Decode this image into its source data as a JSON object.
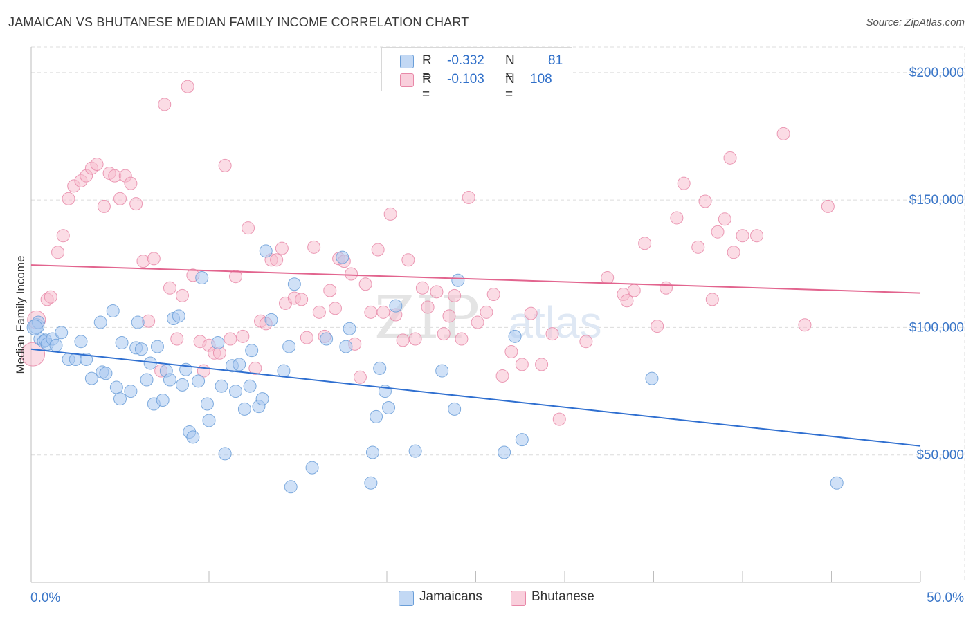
{
  "title": "JAMAICAN VS BHUTANESE MEDIAN FAMILY INCOME CORRELATION CHART",
  "source": "Source: ZipAtlas.com",
  "watermark": {
    "zip": "ZIP",
    "atlas": "atlas"
  },
  "stats": [
    {
      "r_label": "R =",
      "r_value": "-0.332",
      "n_label": "N =",
      "n_value": "81"
    },
    {
      "r_label": "R =",
      "r_value": "-0.103",
      "n_label": "N =",
      "n_value": "108"
    }
  ],
  "legend": {
    "jamaicans": "Jamaicans",
    "bhutanese": "Bhutanese"
  },
  "colors": {
    "jamaicans_fill": "#aac8f0",
    "jamaicans_stroke": "#6a9ed8",
    "jamaicans_line": "#2f6fd0",
    "bhutanese_fill": "#f7bfd0",
    "bhutanese_stroke": "#e888a8",
    "bhutanese_line": "#e2648e",
    "axis_text": "#3a76c8",
    "grid": "#dcdcdc"
  },
  "chart_data": {
    "type": "scatter",
    "title": "JAMAICAN VS BHUTANESE MEDIAN FAMILY INCOME CORRELATION CHART",
    "xlabel": "",
    "ylabel": "Median Family Income",
    "xlim": [
      0,
      50
    ],
    "ylim": [
      0,
      210000
    ],
    "x_tick_labels": [
      "0.0%",
      "50.0%"
    ],
    "y_ticks": [
      50000,
      100000,
      150000,
      200000
    ],
    "y_tick_labels": [
      "$50,000",
      "$100,000",
      "$150,000",
      "$200,000"
    ],
    "grid": true,
    "legend_position": "bottom-center",
    "series": [
      {
        "name": "Jamaicans",
        "r": -0.332,
        "n": 81,
        "trend": {
          "x": [
            0,
            50
          ],
          "y": [
            91500,
            53500
          ]
        },
        "points": [
          [
            0.3,
            100500
          ],
          [
            0.4,
            102000
          ],
          [
            0.5,
            95500
          ],
          [
            0.7,
            94500
          ],
          [
            0.8,
            95000
          ],
          [
            0.9,
            93500
          ],
          [
            1.2,
            95500
          ],
          [
            1.4,
            93000
          ],
          [
            1.7,
            98000
          ],
          [
            2.1,
            87500
          ],
          [
            2.5,
            87500
          ],
          [
            2.8,
            94500
          ],
          [
            3.1,
            87500
          ],
          [
            3.4,
            80000
          ],
          [
            3.9,
            102000
          ],
          [
            4.0,
            82500
          ],
          [
            4.2,
            82000
          ],
          [
            4.6,
            106500
          ],
          [
            4.8,
            76500
          ],
          [
            5.0,
            72000
          ],
          [
            5.1,
            94000
          ],
          [
            5.6,
            75000
          ],
          [
            5.9,
            92000
          ],
          [
            6.2,
            91500
          ],
          [
            6.0,
            102000
          ],
          [
            6.5,
            79500
          ],
          [
            6.7,
            86000
          ],
          [
            6.9,
            70000
          ],
          [
            7.1,
            92500
          ],
          [
            7.4,
            71500
          ],
          [
            7.6,
            83000
          ],
          [
            7.8,
            79500
          ],
          [
            8.0,
            103500
          ],
          [
            8.3,
            104500
          ],
          [
            8.5,
            77500
          ],
          [
            8.7,
            83500
          ],
          [
            8.9,
            59000
          ],
          [
            9.1,
            57000
          ],
          [
            9.4,
            79000
          ],
          [
            9.6,
            119500
          ],
          [
            9.9,
            70000
          ],
          [
            10.0,
            63500
          ],
          [
            10.5,
            94000
          ],
          [
            10.7,
            77000
          ],
          [
            10.9,
            50500
          ],
          [
            11.3,
            85000
          ],
          [
            11.5,
            75000
          ],
          [
            11.7,
            85500
          ],
          [
            12.0,
            68000
          ],
          [
            12.3,
            77000
          ],
          [
            12.4,
            91000
          ],
          [
            12.8,
            69000
          ],
          [
            13.0,
            72000
          ],
          [
            13.2,
            130000
          ],
          [
            13.5,
            103000
          ],
          [
            14.2,
            83000
          ],
          [
            14.5,
            92500
          ],
          [
            14.6,
            37500
          ],
          [
            14.8,
            117000
          ],
          [
            15.8,
            45000
          ],
          [
            16.6,
            95500
          ],
          [
            17.5,
            127500
          ],
          [
            17.7,
            92500
          ],
          [
            17.9,
            99500
          ],
          [
            19.1,
            39000
          ],
          [
            19.2,
            51000
          ],
          [
            19.4,
            65000
          ],
          [
            19.6,
            84000
          ],
          [
            19.9,
            75000
          ],
          [
            20.1,
            68500
          ],
          [
            20.5,
            108500
          ],
          [
            21.6,
            51500
          ],
          [
            23.1,
            83000
          ],
          [
            23.8,
            68000
          ],
          [
            24.0,
            118500
          ],
          [
            26.6,
            51000
          ],
          [
            27.2,
            96500
          ],
          [
            27.6,
            56000
          ],
          [
            34.9,
            80000
          ],
          [
            45.3,
            39000
          ],
          [
            0.2,
            100000
          ]
        ]
      },
      {
        "name": "Bhutanese",
        "r": -0.103,
        "n": 108,
        "trend": {
          "x": [
            0,
            50
          ],
          "y": [
            124500,
            113500
          ]
        },
        "points": [
          [
            0.1,
            89500
          ],
          [
            0.3,
            103000
          ],
          [
            0.9,
            111000
          ],
          [
            1.1,
            112000
          ],
          [
            1.5,
            129500
          ],
          [
            1.8,
            136000
          ],
          [
            2.1,
            150500
          ],
          [
            2.4,
            155500
          ],
          [
            2.8,
            157500
          ],
          [
            3.1,
            159500
          ],
          [
            3.4,
            162500
          ],
          [
            3.7,
            164000
          ],
          [
            4.1,
            147500
          ],
          [
            4.4,
            160500
          ],
          [
            4.7,
            159500
          ],
          [
            5.0,
            150500
          ],
          [
            5.3,
            159500
          ],
          [
            5.6,
            156500
          ],
          [
            5.9,
            148500
          ],
          [
            6.3,
            126000
          ],
          [
            6.6,
            102500
          ],
          [
            6.9,
            127000
          ],
          [
            7.3,
            83000
          ],
          [
            7.5,
            187500
          ],
          [
            7.8,
            115500
          ],
          [
            8.2,
            95500
          ],
          [
            8.5,
            112500
          ],
          [
            8.8,
            194500
          ],
          [
            9.1,
            120500
          ],
          [
            9.5,
            94500
          ],
          [
            9.7,
            83000
          ],
          [
            10.0,
            93000
          ],
          [
            10.3,
            90000
          ],
          [
            10.6,
            90000
          ],
          [
            10.9,
            163500
          ],
          [
            11.2,
            95500
          ],
          [
            11.5,
            120000
          ],
          [
            11.9,
            96500
          ],
          [
            12.2,
            139000
          ],
          [
            12.6,
            84000
          ],
          [
            12.9,
            102500
          ],
          [
            13.2,
            101500
          ],
          [
            13.5,
            126500
          ],
          [
            13.8,
            126500
          ],
          [
            14.1,
            131000
          ],
          [
            14.3,
            109500
          ],
          [
            14.8,
            111500
          ],
          [
            15.2,
            111000
          ],
          [
            15.5,
            96000
          ],
          [
            15.9,
            131500
          ],
          [
            16.2,
            106000
          ],
          [
            16.5,
            96500
          ],
          [
            16.8,
            114500
          ],
          [
            17.1,
            107500
          ],
          [
            17.3,
            127000
          ],
          [
            17.6,
            126000
          ],
          [
            18.0,
            121000
          ],
          [
            18.2,
            93500
          ],
          [
            18.5,
            80500
          ],
          [
            18.8,
            117000
          ],
          [
            19.1,
            106000
          ],
          [
            19.5,
            130500
          ],
          [
            19.8,
            106000
          ],
          [
            20.2,
            144500
          ],
          [
            20.5,
            105000
          ],
          [
            20.9,
            95000
          ],
          [
            21.2,
            126500
          ],
          [
            21.6,
            95500
          ],
          [
            22.0,
            115500
          ],
          [
            22.3,
            108000
          ],
          [
            22.8,
            114000
          ],
          [
            23.2,
            97500
          ],
          [
            23.5,
            104500
          ],
          [
            23.8,
            112500
          ],
          [
            24.2,
            95500
          ],
          [
            24.6,
            151000
          ],
          [
            25.1,
            102000
          ],
          [
            25.6,
            106000
          ],
          [
            26.0,
            113000
          ],
          [
            26.5,
            81000
          ],
          [
            27.0,
            90500
          ],
          [
            27.6,
            85500
          ],
          [
            28.1,
            105500
          ],
          [
            28.7,
            85500
          ],
          [
            29.3,
            97500
          ],
          [
            29.7,
            64000
          ],
          [
            31.2,
            94500
          ],
          [
            32.4,
            119500
          ],
          [
            33.3,
            113000
          ],
          [
            33.5,
            110500
          ],
          [
            33.9,
            114500
          ],
          [
            34.5,
            133000
          ],
          [
            35.2,
            100500
          ],
          [
            35.7,
            115500
          ],
          [
            36.3,
            143000
          ],
          [
            36.7,
            156500
          ],
          [
            37.5,
            131500
          ],
          [
            37.9,
            149500
          ],
          [
            38.3,
            111000
          ],
          [
            38.6,
            137500
          ],
          [
            39.0,
            142500
          ],
          [
            39.3,
            166500
          ],
          [
            39.5,
            129500
          ],
          [
            40.0,
            136000
          ],
          [
            40.8,
            136000
          ],
          [
            42.3,
            176000
          ],
          [
            43.5,
            101000
          ],
          [
            44.8,
            147500
          ]
        ]
      }
    ]
  }
}
